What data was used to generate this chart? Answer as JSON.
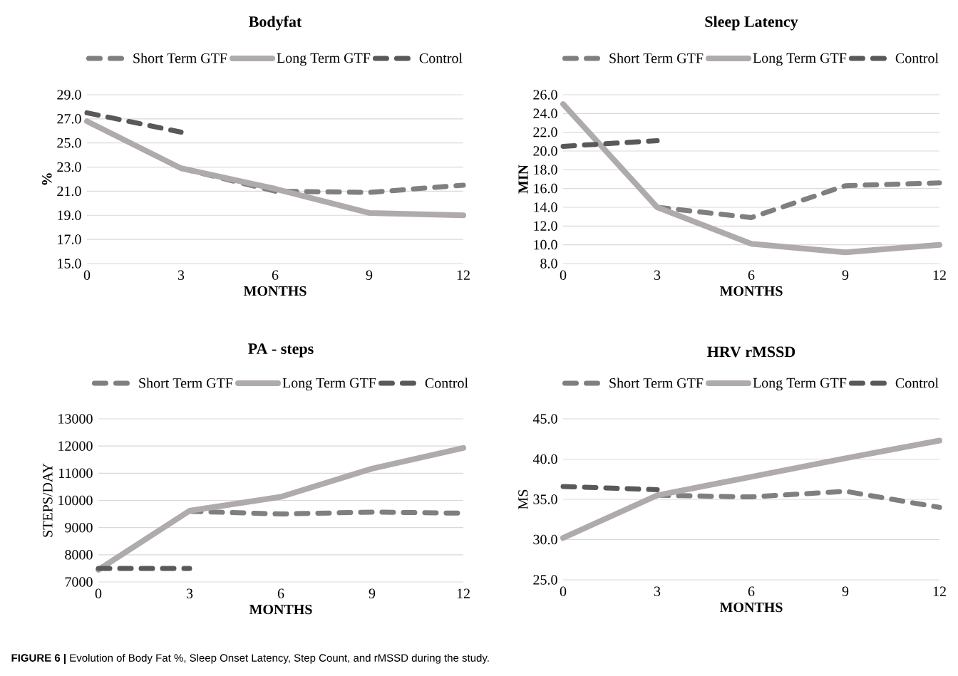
{
  "chart_data": [
    {
      "type": "line",
      "title": "Bodyfat",
      "xlabel": "MONTHS",
      "ylabel": "%",
      "x": [
        0,
        3,
        6,
        9,
        12
      ],
      "xlim": [
        0,
        12
      ],
      "xticks": [
        0,
        3,
        6,
        9,
        12
      ],
      "ylim": [
        15,
        29
      ],
      "yticks": [
        {
          "value": 15,
          "label": "15.0"
        },
        {
          "value": 17,
          "label": "17.0"
        },
        {
          "value": 19,
          "label": "19.0"
        },
        {
          "value": 21,
          "label": "21.0"
        },
        {
          "value": 23,
          "label": "23.0"
        },
        {
          "value": 25,
          "label": "25.0"
        },
        {
          "value": 27,
          "label": "27.0"
        },
        {
          "value": 29,
          "label": "29.0"
        }
      ],
      "grid": "y",
      "legend": "top",
      "marker": "none",
      "series": [
        {
          "name": "Short Term GTF",
          "color": "#7f7f7f",
          "line_style": "dashed",
          "values": [
            null,
            22.9,
            21.0,
            20.9,
            21.5
          ]
        },
        {
          "name": "Long Term GTF",
          "color": "#afabab",
          "line_style": "solid",
          "values": [
            26.8,
            22.9,
            21.2,
            19.2,
            19.0
          ]
        },
        {
          "name": "Control",
          "color": "#595959",
          "line_style": "dashed",
          "values": [
            27.5,
            25.9,
            null,
            null,
            null
          ]
        }
      ],
      "annotations": [
        "**FIGURE 6 |** Evolution of Body Fat %, Sleep Onset Latency, Step Count, and rMSSD during the study."
      ]
    },
    {
      "type": "line",
      "title": "Sleep Latency",
      "xlabel": "MONTHS",
      "ylabel": "MIN",
      "x": [
        0,
        3,
        6,
        9,
        12
      ],
      "xlim": [
        0,
        12
      ],
      "xticks": [
        0,
        3,
        6,
        9,
        12
      ],
      "ylim": [
        8,
        26
      ],
      "yticks": [
        {
          "value": 8,
          "label": "8.0"
        },
        {
          "value": 10,
          "label": "10.0"
        },
        {
          "value": 12,
          "label": "12.0"
        },
        {
          "value": 14,
          "label": "14.0"
        },
        {
          "value": 16,
          "label": "16.0"
        },
        {
          "value": 18,
          "label": "18.0"
        },
        {
          "value": 20,
          "label": "20.0"
        },
        {
          "value": 22,
          "label": "22.0"
        },
        {
          "value": 24,
          "label": "24.0"
        },
        {
          "value": 26,
          "label": "26.0"
        }
      ],
      "grid": "y",
      "legend": "top",
      "marker": "none",
      "series": [
        {
          "name": "Short Term GTF",
          "color": "#7f7f7f",
          "line_style": "dashed",
          "values": [
            null,
            14.0,
            12.9,
            16.3,
            16.6
          ]
        },
        {
          "name": "Long Term GTF",
          "color": "#afabab",
          "line_style": "solid",
          "values": [
            25.0,
            14.0,
            10.1,
            9.2,
            10.0
          ]
        },
        {
          "name": "Control",
          "color": "#595959",
          "line_style": "dashed",
          "values": [
            20.5,
            21.1,
            null,
            null,
            null
          ]
        }
      ]
    },
    {
      "type": "line",
      "title": "PA - steps",
      "xlabel": "MONTHS",
      "ylabel": "STEPS/DAY",
      "x": [
        0,
        3,
        6,
        9,
        12
      ],
      "xlim": [
        0,
        12
      ],
      "xticks": [
        0,
        3,
        6,
        9,
        12
      ],
      "ylim": [
        7000,
        13000
      ],
      "yticks": [
        7000,
        8000,
        9000,
        10000,
        11000,
        12000,
        13000
      ],
      "grid": "y",
      "legend": "top",
      "marker": "none",
      "series": [
        {
          "name": "Short Term GTF",
          "color": "#7f7f7f",
          "line_style": "dashed",
          "values": [
            null,
            9600,
            9500,
            9570,
            9530
          ]
        },
        {
          "name": "Long Term GTF",
          "color": "#afabab",
          "line_style": "solid",
          "values": [
            7450,
            9620,
            10130,
            11170,
            11930
          ]
        },
        {
          "name": "Control",
          "color": "#595959",
          "line_style": "dashed",
          "values": [
            7500,
            7500,
            null,
            null,
            null
          ]
        }
      ]
    },
    {
      "type": "line",
      "title": "HRV rMSSD",
      "xlabel": "MONTHS",
      "ylabel": "MS",
      "x": [
        0,
        3,
        6,
        9,
        12
      ],
      "xlim": [
        0,
        12
      ],
      "xticks": [
        0,
        3,
        6,
        9,
        12
      ],
      "ylim": [
        25,
        45
      ],
      "yticks": [
        {
          "value": 25,
          "label": "25.0"
        },
        {
          "value": 30,
          "label": "30.0"
        },
        {
          "value": 35,
          "label": "35.0"
        },
        {
          "value": 40,
          "label": "40.0"
        },
        {
          "value": 45,
          "label": "45.0"
        }
      ],
      "grid": "y",
      "legend": "top",
      "marker": "none",
      "series": [
        {
          "name": "Short Term GTF",
          "color": "#7f7f7f",
          "line_style": "dashed",
          "values": [
            null,
            35.5,
            35.3,
            36.0,
            34.0
          ]
        },
        {
          "name": "Long Term GTF",
          "color": "#afabab",
          "line_style": "solid",
          "values": [
            30.2,
            35.5,
            37.8,
            40.1,
            42.3
          ]
        },
        {
          "name": "Control",
          "color": "#595959",
          "line_style": "dashed",
          "values": [
            36.6,
            36.2,
            null,
            null,
            null
          ]
        }
      ]
    }
  ]
}
